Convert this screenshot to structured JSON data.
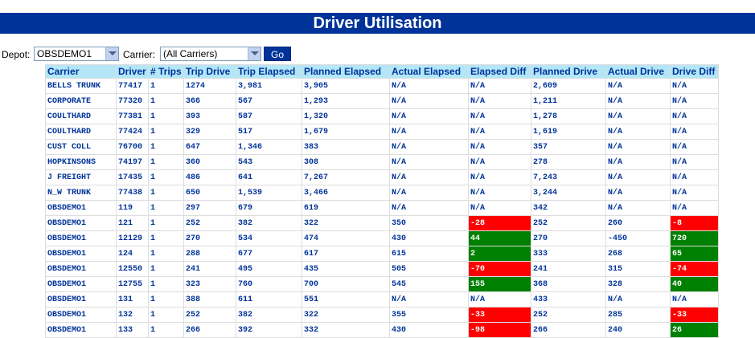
{
  "title": "Driver Utilisation",
  "filters": {
    "depot_label": "Depot:",
    "depot_value": "OBSDEMO1",
    "carrier_label": "Carrier:",
    "carrier_value": "(All Carriers)",
    "go_label": "Go"
  },
  "table": {
    "headers": [
      "Carrier",
      "Driver",
      "# Trips",
      "Trip Drive",
      "Trip Elapsed",
      "Planned Elapsed",
      "Actual Elapsed",
      "Elapsed Diff",
      "Planned Drive",
      "Actual Drive",
      "Drive Diff"
    ],
    "rows": [
      [
        "BELLS TRUNK",
        "77417",
        "1",
        "1274",
        "3,981",
        "3,905",
        "N/A",
        "N/A",
        "2,609",
        "N/A",
        "N/A"
      ],
      [
        "CORPORATE",
        "77320",
        "1",
        "366",
        "567",
        "1,293",
        "N/A",
        "N/A",
        "1,211",
        "N/A",
        "N/A"
      ],
      [
        "COULTHARD",
        "77381",
        "1",
        "393",
        "587",
        "1,320",
        "N/A",
        "N/A",
        "1,278",
        "N/A",
        "N/A"
      ],
      [
        "COULTHARD",
        "77424",
        "1",
        "329",
        "517",
        "1,679",
        "N/A",
        "N/A",
        "1,619",
        "N/A",
        "N/A"
      ],
      [
        "CUST COLL",
        "76700",
        "1",
        "647",
        "1,346",
        "383",
        "N/A",
        "N/A",
        "357",
        "N/A",
        "N/A"
      ],
      [
        "HOPKINSONS",
        "74197",
        "1",
        "360",
        "543",
        "308",
        "N/A",
        "N/A",
        "278",
        "N/A",
        "N/A"
      ],
      [
        "J FREIGHT",
        "17435",
        "1",
        "486",
        "641",
        "7,267",
        "N/A",
        "N/A",
        "7,243",
        "N/A",
        "N/A"
      ],
      [
        "N_W TRUNK",
        "77438",
        "1",
        "650",
        "1,539",
        "3,466",
        "N/A",
        "N/A",
        "3,244",
        "N/A",
        "N/A"
      ],
      [
        "OBSDEMO1",
        "119",
        "1",
        "297",
        "679",
        "619",
        "N/A",
        "N/A",
        "342",
        "N/A",
        "N/A"
      ],
      [
        "OBSDEMO1",
        "121",
        "1",
        "252",
        "382",
        "322",
        "350",
        "-28",
        "252",
        "260",
        "-8"
      ],
      [
        "OBSDEMO1",
        "12129",
        "1",
        "270",
        "534",
        "474",
        "430",
        "44",
        "270",
        "-450",
        "720"
      ],
      [
        "OBSDEMO1",
        "124",
        "1",
        "288",
        "677",
        "617",
        "615",
        "2",
        "333",
        "268",
        "65"
      ],
      [
        "OBSDEMO1",
        "12550",
        "1",
        "241",
        "495",
        "435",
        "505",
        "-70",
        "241",
        "315",
        "-74"
      ],
      [
        "OBSDEMO1",
        "12755",
        "1",
        "323",
        "760",
        "700",
        "545",
        "155",
        "368",
        "328",
        "40"
      ],
      [
        "OBSDEMO1",
        "131",
        "1",
        "388",
        "611",
        "551",
        "N/A",
        "N/A",
        "433",
        "N/A",
        "N/A"
      ],
      [
        "OBSDEMO1",
        "132",
        "1",
        "252",
        "382",
        "322",
        "355",
        "-33",
        "252",
        "285",
        "-33"
      ],
      [
        "OBSDEMO1",
        "133",
        "1",
        "266",
        "392",
        "332",
        "430",
        "-98",
        "266",
        "240",
        "26"
      ]
    ]
  },
  "colors": {
    "header_bar": "#00339a",
    "column_header_bg": "#b3e6f7",
    "text": "#00339a",
    "negative": "#ff0000",
    "positive": "#008000"
  }
}
